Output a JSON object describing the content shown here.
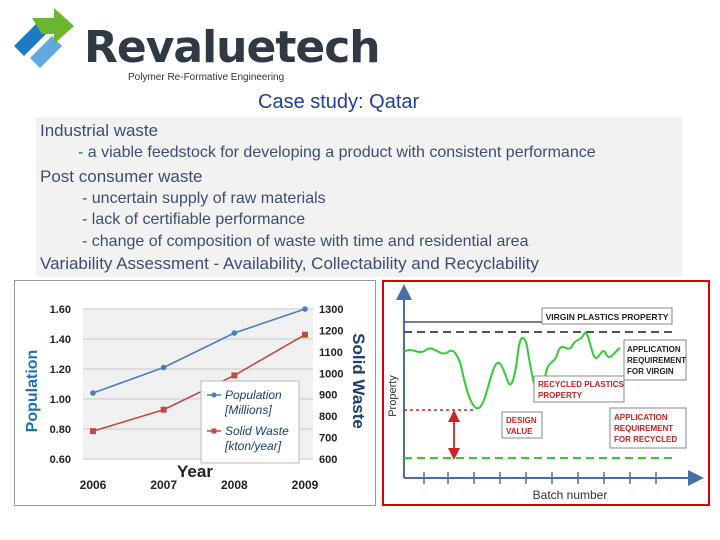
{
  "header": {
    "brand": "Revaluetech",
    "tagline": "Polymer Re-Formative Engineering",
    "title": "Case study: Qatar",
    "logo_icon": "recycle-arrows-icon"
  },
  "bullets": {
    "industrial": "Industrial waste",
    "industrial_sub": "- a viable feedstock for developing a product with consistent performance",
    "post_consumer": "Post consumer waste",
    "pc_sub1": "- uncertain supply of raw materials",
    "pc_sub2": "- lack of certifiable performance",
    "pc_sub3": "- change of composition of waste with time and residential area",
    "variability": "Variability Assessment - Availability, Collectability and Recyclability"
  },
  "chart_data": [
    {
      "type": "line",
      "x": [
        2006,
        2007,
        2008,
        2009
      ],
      "xlabel": "Year",
      "ylabel": "Population",
      "y2label": "Solid Waste",
      "ylim": [
        0.6,
        1.6
      ],
      "y2lim": [
        600,
        1300
      ],
      "yticks": [
        "0.60",
        "0.80",
        "1.00",
        "1.20",
        "1.40",
        "1.60"
      ],
      "y2ticks": [
        "600",
        "700",
        "800",
        "900",
        "1000",
        "1100",
        "1200",
        "1300"
      ],
      "xticks": [
        "2006",
        "2007",
        "2008",
        "2009"
      ],
      "series": [
        {
          "name": "Population [Millions]",
          "axis": "left",
          "color": "#4a7ebb",
          "values": [
            1.04,
            1.21,
            1.44,
            1.6
          ]
        },
        {
          "name": "Solid Waste [kton/year]",
          "axis": "right",
          "color": "#be4b48",
          "values": [
            730,
            830,
            990,
            1180
          ]
        }
      ],
      "grid": true,
      "legend": "center"
    },
    {
      "type": "line",
      "xlabel": "Batch number",
      "ylabel": "Property",
      "annotations": {
        "virgin_property": "VIRGIN PLASTICS PROPERTY",
        "app_virgin": [
          "APPLICATION",
          "REQUIREMENT",
          "FOR VIRGIN"
        ],
        "recycled_property": [
          "RECYCLED PLASTICS",
          "PROPERTY"
        ],
        "design_value": [
          "DESIGN",
          "VALUE"
        ],
        "app_recycled": [
          "APPLICATION",
          "REQUIREMENT",
          "FOR RECYCLED"
        ]
      },
      "colors": {
        "virgin_line": "#555555",
        "recycled_curve": "#33cc33",
        "design_line": "#cc2222",
        "box_text": "#cc2222",
        "virgin_box_text": "#222222"
      }
    }
  ]
}
